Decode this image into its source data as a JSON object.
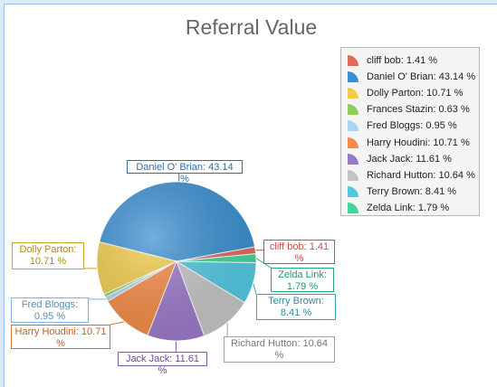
{
  "chart_data": {
    "type": "pie",
    "title": "Referral Value",
    "slices": [
      {
        "label": "cliff bob: 1.41 %",
        "name": "cliff bob",
        "value": 1.41,
        "color": "#e06b5a"
      },
      {
        "label": "Daniel O' Brian: 43.14 %",
        "name": "Daniel O' Brian",
        "value": 43.14,
        "color": "#3a8fd1"
      },
      {
        "label": "Dolly Parton: 10.71 %",
        "name": "Dolly Parton",
        "value": 10.71,
        "color": "#f0cc49"
      },
      {
        "label": "Frances Stazin: 0.63 %",
        "name": "Frances Stazin",
        "value": 0.63,
        "color": "#8fcf5a"
      },
      {
        "label": "Fred Bloggs: 0.95 %",
        "name": "Fred Bloggs",
        "value": 0.95,
        "color": "#a8d6f2"
      },
      {
        "label": "Harry Houdini: 10.71 %",
        "name": "Harry Houdini",
        "value": 10.71,
        "color": "#f48a45"
      },
      {
        "label": "Jack Jack: 11.61 %",
        "name": "Jack Jack",
        "value": 11.61,
        "color": "#9a78c8"
      },
      {
        "label": "Richard Hutton: 10.64 %",
        "name": "Richard Hutton",
        "value": 10.64,
        "color": "#c4c4c4"
      },
      {
        "label": "Terry Brown: 8.41 %",
        "name": "Terry Brown",
        "value": 8.41,
        "color": "#52c8e0"
      },
      {
        "label": "Zelda Link: 1.79 %",
        "name": "Zelda Link",
        "value": 1.79,
        "color": "#3ed69a"
      }
    ],
    "legend_position": "top-right",
    "callouts": [
      {
        "slice": 0,
        "line1": "cliff bob: 1.41",
        "line2": "%",
        "border": "#c0504d",
        "text": "#c0504d"
      },
      {
        "slice": 1,
        "line1": "Daniel O' Brian: 43.14 %",
        "line2": "",
        "border": "#2d6fa8",
        "text": "#2d6fa8"
      },
      {
        "slice": 2,
        "line1": "Dolly Parton:",
        "line2": "10.71 %",
        "border": "#c9a227",
        "text": "#b08a1a"
      },
      {
        "slice": 4,
        "line1": "Fred Bloggs:",
        "line2": "0.95 %",
        "border": "#7fb2d6",
        "text": "#5b8db3"
      },
      {
        "slice": 5,
        "line1": "Harry Houdini: 10.71",
        "line2": "%",
        "border": "#d3702e",
        "text": "#c0602a"
      },
      {
        "slice": 6,
        "line1": "Jack Jack: 11.61 %",
        "line2": "",
        "border": "#7b5aa8",
        "text": "#6b4a98"
      },
      {
        "slice": 7,
        "line1": "Richard Hutton: 10.64",
        "line2": "%",
        "border": "#a0a0a0",
        "text": "#777777"
      },
      {
        "slice": 8,
        "line1": "Terry Brown:",
        "line2": "8.41 %",
        "border": "#2fa6c2",
        "text": "#2a8aa5"
      },
      {
        "slice": 9,
        "line1": "Zelda Link:",
        "line2": "1.79 %",
        "border": "#27a879",
        "text": "#1f9a6c"
      }
    ]
  }
}
